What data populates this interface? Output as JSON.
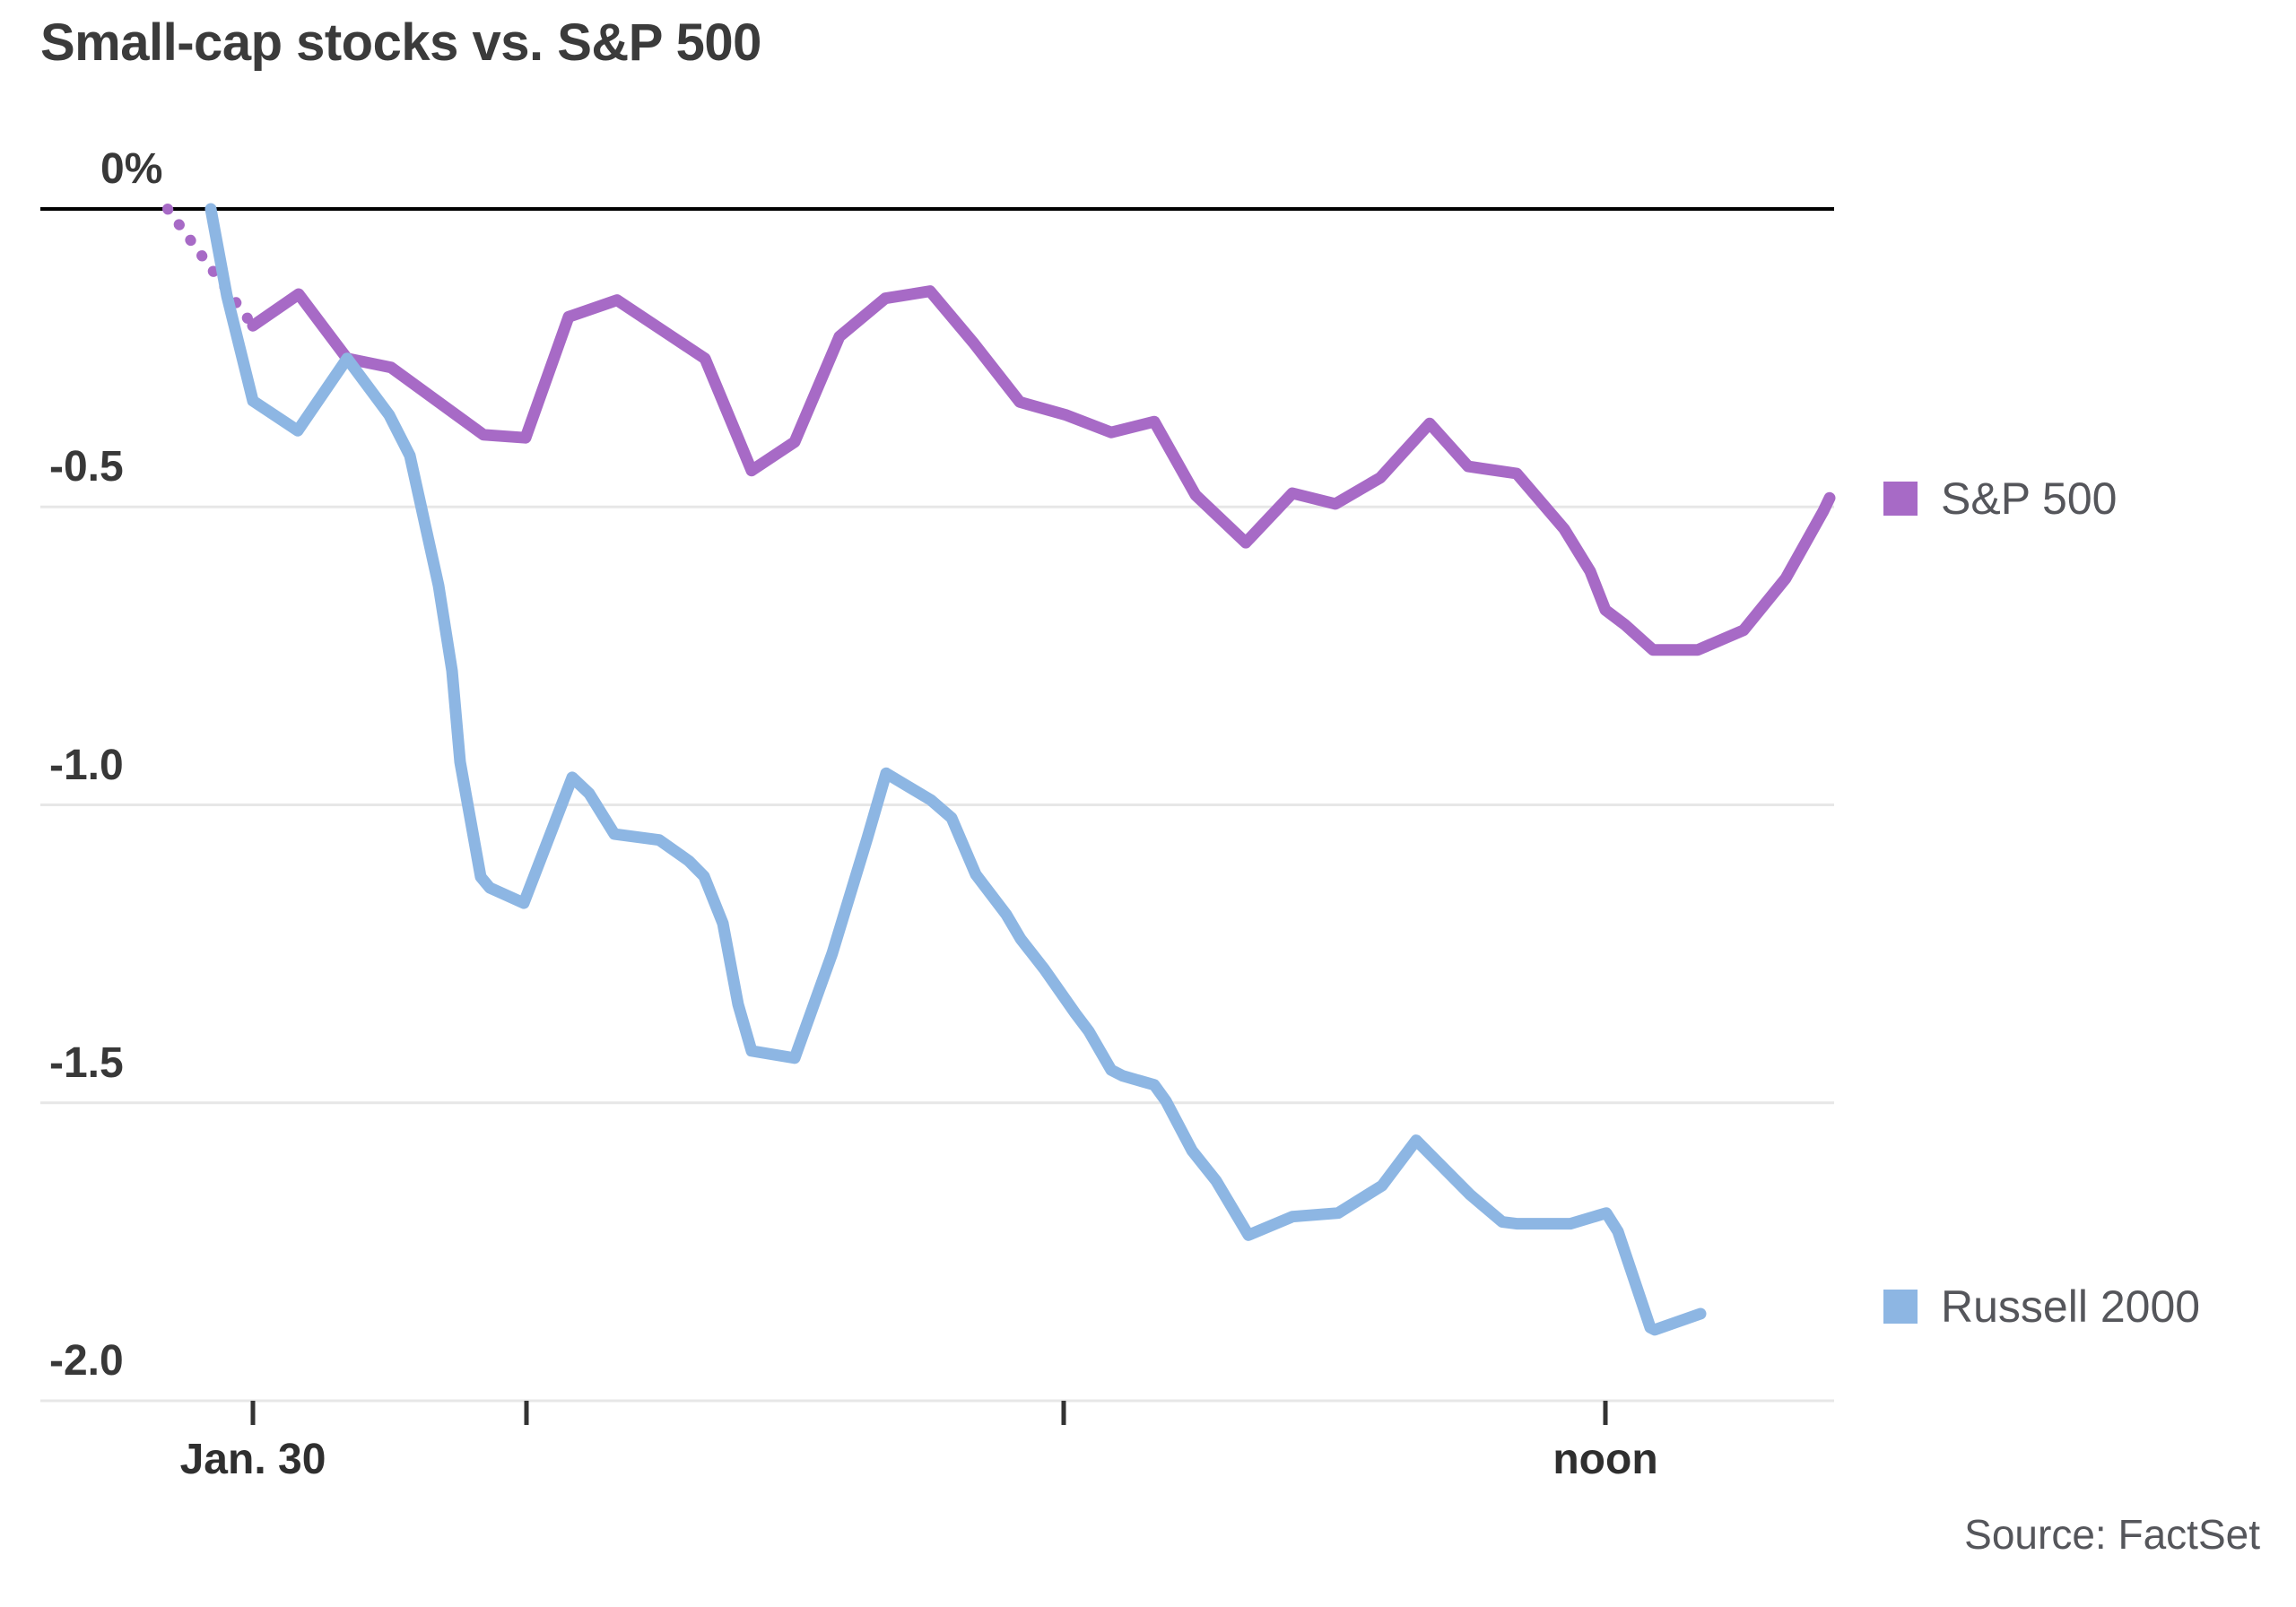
{
  "title": "Small-cap stocks vs. S&P 500",
  "source": "Source: FactSet",
  "chart_data": {
    "type": "line",
    "title": "Small-cap stocks vs. S&P 500",
    "y_unit": "percent change",
    "ylim": [
      -2.0,
      0
    ],
    "grid": true,
    "legend_position": "right",
    "colors": {
      "sp500": "#a76ac6",
      "russell2000": "#8db6e3",
      "zero_line": "#000000",
      "gridline": "#e7e7e7",
      "tick": "#333333"
    },
    "y_ticks": [
      {
        "label": "0%",
        "value": 0
      },
      {
        "label": "-0.5",
        "value": -0.5
      },
      {
        "label": "-1.0",
        "value": -1.0
      },
      {
        "label": "-1.5",
        "value": -1.5
      },
      {
        "label": "-2.0",
        "value": -2.0
      }
    ],
    "x_ticks": [
      {
        "label": "Jan. 30",
        "px": 282
      },
      {
        "label": "",
        "px": 587
      },
      {
        "label": "",
        "px": 1186
      },
      {
        "label": "noon",
        "px": 1790
      }
    ],
    "series": [
      {
        "name": "S&P 500",
        "color": "#a76ac6",
        "dotted_lead_in": [
          [
            187,
            0.0
          ],
          [
            282,
            -0.196
          ]
        ],
        "points": [
          [
            282,
            -0.196
          ],
          [
            333,
            -0.143
          ],
          [
            387,
            -0.251
          ],
          [
            436,
            -0.266
          ],
          [
            539,
            -0.379
          ],
          [
            586,
            -0.384
          ],
          [
            634,
            -0.181
          ],
          [
            688,
            -0.153
          ],
          [
            786,
            -0.251
          ],
          [
            838,
            -0.439
          ],
          [
            886,
            -0.391
          ],
          [
            936,
            -0.214
          ],
          [
            987,
            -0.15
          ],
          [
            1037,
            -0.138
          ],
          [
            1085,
            -0.224
          ],
          [
            1137,
            -0.324
          ],
          [
            1189,
            -0.346
          ],
          [
            1239,
            -0.375
          ],
          [
            1287,
            -0.357
          ],
          [
            1333,
            -0.48
          ],
          [
            1389,
            -0.56
          ],
          [
            1441,
            -0.477
          ],
          [
            1489,
            -0.495
          ],
          [
            1539,
            -0.451
          ],
          [
            1594,
            -0.36
          ],
          [
            1637,
            -0.432
          ],
          [
            1691,
            -0.444
          ],
          [
            1744,
            -0.537
          ],
          [
            1773,
            -0.608
          ],
          [
            1790,
            -0.673
          ],
          [
            1812,
            -0.698
          ],
          [
            1843,
            -0.74
          ],
          [
            1893,
            -0.74
          ],
          [
            1944,
            -0.707
          ],
          [
            1991,
            -0.62
          ],
          [
            2033,
            -0.507
          ],
          [
            2040,
            -0.485
          ]
        ]
      },
      {
        "name": "Russell 2000",
        "color": "#8db6e3",
        "points": [
          [
            235,
            0.0
          ],
          [
            253,
            -0.146
          ],
          [
            282,
            -0.322
          ],
          [
            332,
            -0.372
          ],
          [
            387,
            -0.251
          ],
          [
            434,
            -0.346
          ],
          [
            457,
            -0.414
          ],
          [
            489,
            -0.632
          ],
          [
            504,
            -0.775
          ],
          [
            513,
            -0.928
          ],
          [
            536,
            -1.121
          ],
          [
            546,
            -1.139
          ],
          [
            584,
            -1.165
          ],
          [
            638,
            -0.954
          ],
          [
            657,
            -0.981
          ],
          [
            685,
            -1.049
          ],
          [
            735,
            -1.059
          ],
          [
            768,
            -1.094
          ],
          [
            785,
            -1.12
          ],
          [
            806,
            -1.199
          ],
          [
            823,
            -1.335
          ],
          [
            838,
            -1.413
          ],
          [
            886,
            -1.425
          ],
          [
            928,
            -1.249
          ],
          [
            967,
            -1.056
          ],
          [
            988,
            -0.947
          ],
          [
            1038,
            -0.992
          ],
          [
            1061,
            -1.022
          ],
          [
            1088,
            -1.117
          ],
          [
            1122,
            -1.184
          ],
          [
            1138,
            -1.225
          ],
          [
            1164,
            -1.275
          ],
          [
            1199,
            -1.35
          ],
          [
            1214,
            -1.38
          ],
          [
            1239,
            -1.445
          ],
          [
            1252,
            -1.455
          ],
          [
            1287,
            -1.47
          ],
          [
            1300,
            -1.497
          ],
          [
            1329,
            -1.58
          ],
          [
            1356,
            -1.631
          ],
          [
            1392,
            -1.722
          ],
          [
            1441,
            -1.691
          ],
          [
            1492,
            -1.685
          ],
          [
            1541,
            -1.639
          ],
          [
            1579,
            -1.563
          ],
          [
            1639,
            -1.654
          ],
          [
            1675,
            -1.7
          ],
          [
            1691,
            -1.703
          ],
          [
            1751,
            -1.703
          ],
          [
            1791,
            -1.685
          ],
          [
            1804,
            -1.716
          ],
          [
            1840,
            -1.877
          ],
          [
            1845,
            -1.881
          ],
          [
            1896,
            -1.854
          ]
        ]
      }
    ]
  }
}
